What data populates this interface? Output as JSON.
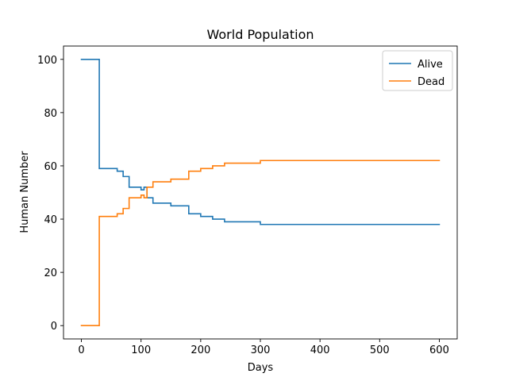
{
  "chart_data": {
    "type": "line",
    "title": "World Population",
    "xlabel": "Days",
    "ylabel": "Human Number",
    "xlim": [
      -30,
      630
    ],
    "ylim": [
      -5,
      105
    ],
    "xticks": [
      0,
      100,
      200,
      300,
      400,
      500,
      600
    ],
    "yticks": [
      0,
      20,
      40,
      60,
      80,
      100
    ],
    "grid": false,
    "legend_position": "top-right",
    "series": [
      {
        "name": "Alive",
        "color": "#1f77b4",
        "step": "post",
        "points": [
          [
            0,
            100
          ],
          [
            30,
            59
          ],
          [
            60,
            58
          ],
          [
            70,
            56
          ],
          [
            80,
            52
          ],
          [
            100,
            51
          ],
          [
            105,
            52
          ],
          [
            110,
            48
          ],
          [
            120,
            46
          ],
          [
            150,
            45
          ],
          [
            180,
            42
          ],
          [
            200,
            41
          ],
          [
            220,
            40
          ],
          [
            240,
            39
          ],
          [
            300,
            38
          ],
          [
            600,
            38
          ]
        ]
      },
      {
        "name": "Dead",
        "color": "#ff7f0e",
        "step": "post",
        "points": [
          [
            0,
            0
          ],
          [
            30,
            41
          ],
          [
            60,
            42
          ],
          [
            70,
            44
          ],
          [
            80,
            48
          ],
          [
            100,
            49
          ],
          [
            105,
            48
          ],
          [
            110,
            52
          ],
          [
            120,
            54
          ],
          [
            150,
            55
          ],
          [
            180,
            58
          ],
          [
            200,
            59
          ],
          [
            220,
            60
          ],
          [
            240,
            61
          ],
          [
            300,
            62
          ],
          [
            600,
            62
          ]
        ]
      }
    ]
  }
}
